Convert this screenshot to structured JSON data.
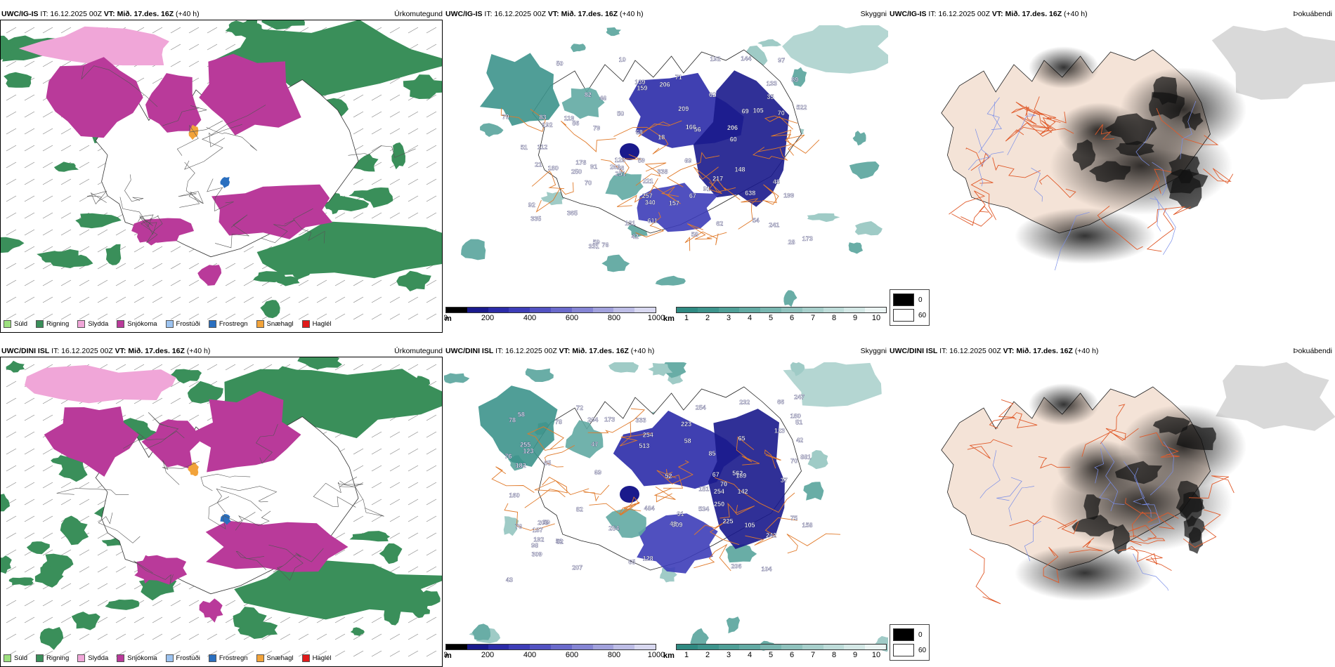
{
  "rows": [
    {
      "model": "UWC/IG-IS",
      "it": "IT: 16.12.2025 00Z",
      "vt_label": "VT:",
      "vt": "Mið. 17.des. 16Z",
      "lead": "(+40 h)",
      "vis_labels": [
        "365",
        "217",
        "148",
        "128",
        "131",
        "338",
        "206",
        "157",
        "638",
        "173",
        "221",
        "522",
        "83",
        "611",
        "261",
        "178",
        "199",
        "331",
        "192",
        "180",
        "335",
        "144",
        "340",
        "112",
        "241",
        "250",
        "62",
        "59",
        "60",
        "192",
        "251",
        "48",
        "69",
        "139",
        "68",
        "79",
        "54",
        "82",
        "92",
        "133",
        "119",
        "10",
        "70",
        "71",
        "56",
        "70",
        "62",
        "89",
        "91",
        "28",
        "48",
        "79",
        "67",
        "50",
        "56",
        "51",
        "206",
        "58",
        "69",
        "46",
        "166",
        "209",
        "159",
        "97",
        "76",
        "59",
        "35",
        "50",
        "91",
        "105",
        "257",
        "42",
        "21",
        "18"
      ],
      "cloud_labels": []
    },
    {
      "model": "UWC/DINI ISL",
      "it": "IT: 16.12.2025 00Z",
      "vt_label": "VT:",
      "vt": "Mið. 17.des. 16Z",
      "lead": "(+40 h)",
      "vis_labels": [
        "206",
        "189",
        "151",
        "128",
        "309",
        "67",
        "484",
        "513",
        "180",
        "254",
        "142",
        "206",
        "232",
        "242",
        "333",
        "562",
        "123",
        "173",
        "225",
        "254",
        "65",
        "78",
        "187",
        "192",
        "51",
        "58",
        "254",
        "66",
        "52",
        "70",
        "78",
        "82",
        "85",
        "98",
        "58",
        "104",
        "76",
        "47",
        "91",
        "72",
        "69",
        "82",
        "65",
        "65",
        "158",
        "160",
        "247",
        "254",
        "207",
        "204",
        "223",
        "309",
        "250",
        "182",
        "75",
        "48",
        "76",
        "59",
        "52",
        "37",
        "42",
        "123",
        "43",
        "105",
        "255",
        "534",
        "70",
        "881"
      ]
    }
  ],
  "precip": {
    "title": "Úrkomutegund",
    "legend": [
      {
        "label": "Súld",
        "color": "#9de07f"
      },
      {
        "label": "Rigning",
        "color": "#3a8f5a"
      },
      {
        "label": "Slydda",
        "color": "#f0a6d8"
      },
      {
        "label": "Snjókoma",
        "color": "#b93a9a"
      },
      {
        "label": "Frostúði",
        "color": "#9cc3f0"
      },
      {
        "label": "Frostregn",
        "color": "#2a6fbf"
      },
      {
        "label": "Snæhagl",
        "color": "#f2a33a"
      },
      {
        "label": "Haglél",
        "color": "#e01a1a"
      }
    ]
  },
  "visibility": {
    "title": "Skyggni",
    "height_unit": "m",
    "height_ticks": [
      "0",
      "200",
      "400",
      "600",
      "800",
      "1000"
    ],
    "height_colors": [
      "#000000",
      "#1a1a8c",
      "#2b2ba8",
      "#3d3db8",
      "#5252c2",
      "#6a6acb",
      "#8585d4",
      "#a1a1dc",
      "#bdbde6",
      "#d8d8f0"
    ],
    "dist_unit": "km",
    "dist_ticks": [
      "1",
      "2",
      "3",
      "4",
      "5",
      "6",
      "7",
      "8",
      "9",
      "10"
    ],
    "dist_colors": [
      "#2f8a82",
      "#3d948c",
      "#4f9f97",
      "#62aaa3",
      "#78b6b0",
      "#8fc2bd",
      "#a7cfcb",
      "#bedcd9",
      "#d4e8e6",
      "#ebf4f3"
    ]
  },
  "fog": {
    "title": "Þokuábendi",
    "legend": [
      {
        "label": "0",
        "color": "#000000"
      },
      {
        "label": "60",
        "color": "#ffffff"
      }
    ]
  }
}
